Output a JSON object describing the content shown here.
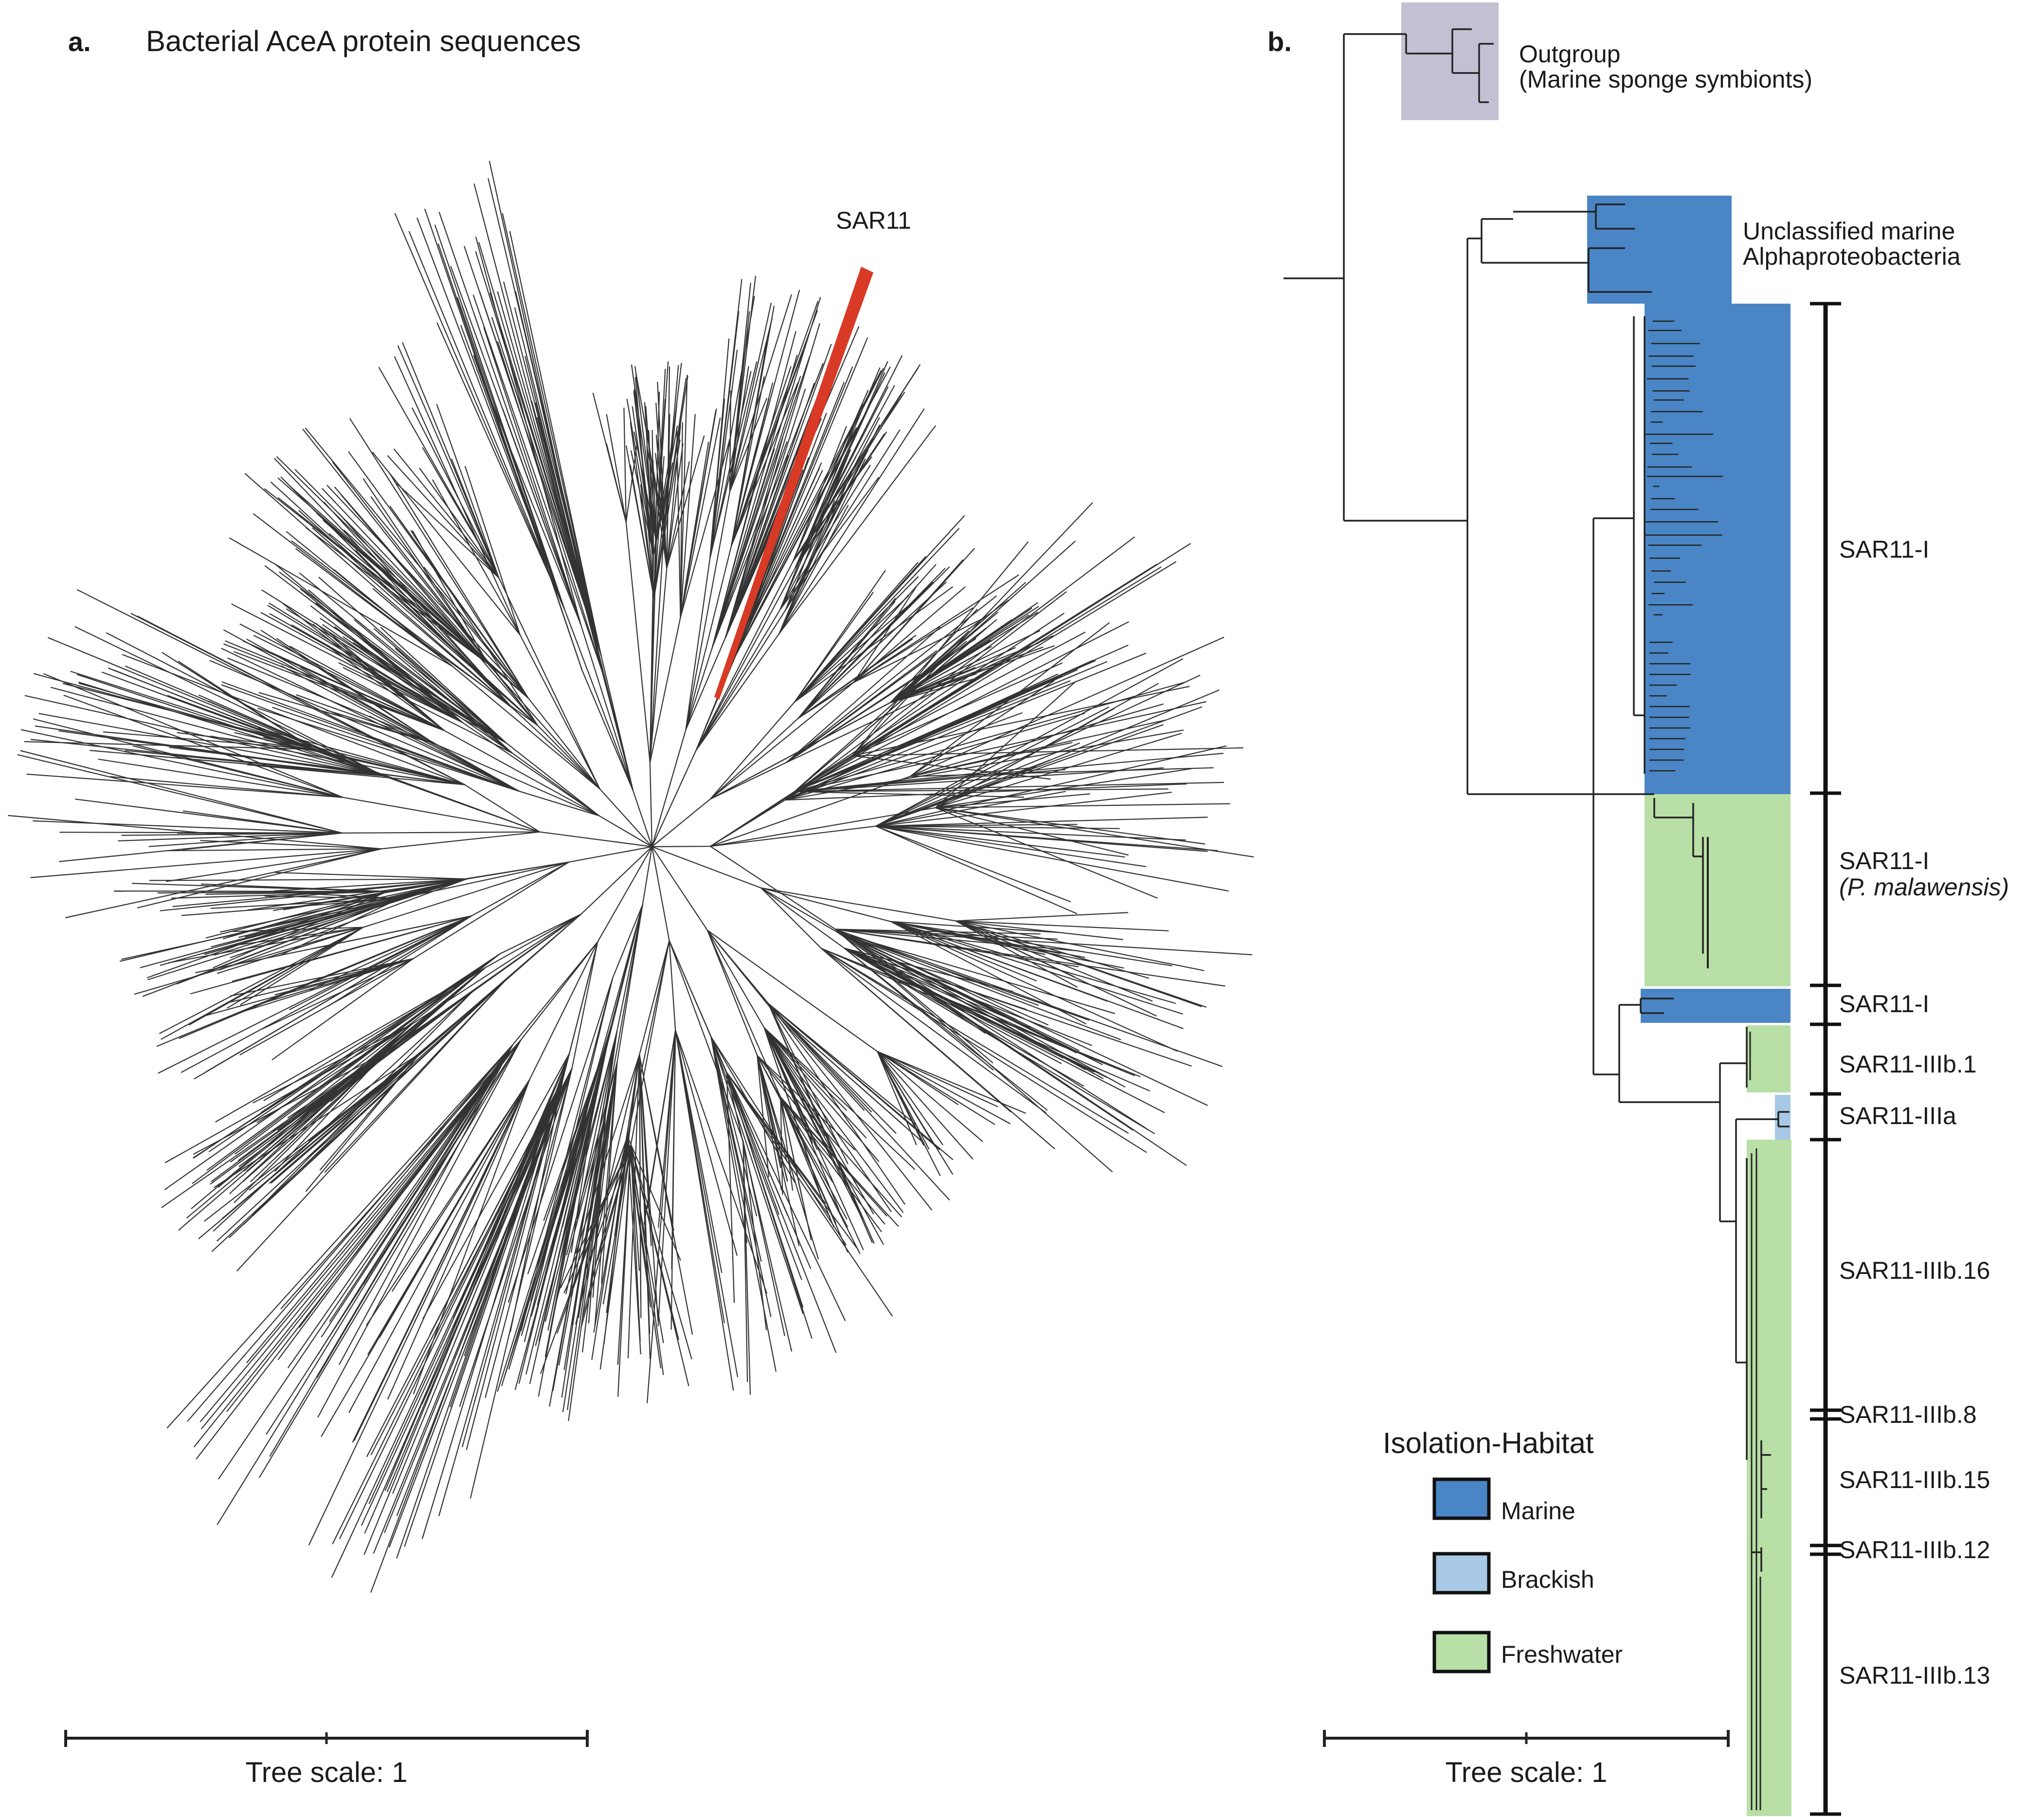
{
  "panel_a": {
    "letter": "a.",
    "title": "Bacterial AceA protein sequences",
    "highlight_label": "SAR11",
    "scale_label": "Tree scale: 1"
  },
  "panel_b": {
    "letter": "b.",
    "outgroup_line1": "Outgroup",
    "outgroup_line2": "(Marine sponge symbionts)",
    "unclassified_line1": "Unclassified marine",
    "unclassified_line2": "Alphaproteobacteria",
    "clades": [
      {
        "label": "SAR11-I"
      },
      {
        "label": "SAR11-I",
        "sublabel": "(P. malawensis)"
      },
      {
        "label": "SAR11-I"
      },
      {
        "label": "SAR11-IIIb.1"
      },
      {
        "label": "SAR11-IIIa"
      },
      {
        "label": "SAR11-IIIb.16"
      },
      {
        "label": "SAR11-IIIb.8"
      },
      {
        "label": "SAR11-IIIb.15"
      },
      {
        "label": "SAR11-IIIb.12"
      },
      {
        "label": "SAR11-IIIb.13"
      }
    ],
    "legend": {
      "title": "Isolation-Habitat",
      "items": [
        {
          "label": "Marine",
          "color": "#4a86c5"
        },
        {
          "label": "Brackish",
          "color": "#a7c9e6"
        },
        {
          "label": "Freshwater",
          "color": "#b8dfa6"
        }
      ]
    },
    "outgroup_color": "#c4c0d3",
    "sar11_highlight_color": "#d83a26",
    "scale_label": "Tree scale: 1"
  }
}
